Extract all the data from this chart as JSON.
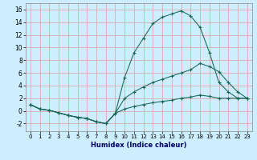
{
  "xlabel": "Humidex (Indice chaleur)",
  "bg_color": "#cceeff",
  "grid_color": "#ddaaaa",
  "line_color": "#1a6655",
  "xlim": [
    -0.5,
    23.5
  ],
  "ylim": [
    -3.2,
    17.0
  ],
  "yticks": [
    -2,
    0,
    2,
    4,
    6,
    8,
    10,
    12,
    14,
    16
  ],
  "xticks": [
    0,
    1,
    2,
    3,
    4,
    5,
    6,
    7,
    8,
    9,
    10,
    11,
    12,
    13,
    14,
    15,
    16,
    17,
    18,
    19,
    20,
    21,
    22,
    23
  ],
  "series1_x": [
    0,
    1,
    2,
    3,
    4,
    5,
    6,
    7,
    8,
    9,
    10,
    11,
    12,
    13,
    14,
    15,
    16,
    17,
    18,
    19,
    20,
    21,
    22,
    23
  ],
  "series1_y": [
    1.0,
    0.3,
    0.1,
    -0.3,
    -0.7,
    -1.0,
    -1.2,
    -1.7,
    -2.0,
    -0.4,
    5.3,
    9.2,
    11.5,
    13.8,
    14.8,
    15.3,
    15.8,
    15.0,
    13.2,
    9.2,
    4.5,
    3.0,
    2.0,
    2.0
  ],
  "series2_x": [
    0,
    1,
    2,
    3,
    4,
    5,
    6,
    7,
    8,
    9,
    10,
    11,
    12,
    13,
    14,
    15,
    16,
    17,
    18,
    19,
    20,
    21,
    22,
    23
  ],
  "series2_y": [
    1.0,
    0.3,
    0.1,
    -0.3,
    -0.7,
    -1.0,
    -1.2,
    -1.7,
    -2.0,
    -0.4,
    2.0,
    3.0,
    3.8,
    4.5,
    5.0,
    5.5,
    6.0,
    6.5,
    7.5,
    7.0,
    6.2,
    4.5,
    3.0,
    2.0
  ],
  "series3_x": [
    0,
    1,
    2,
    3,
    4,
    5,
    6,
    7,
    8,
    9,
    10,
    11,
    12,
    13,
    14,
    15,
    16,
    17,
    18,
    19,
    20,
    21,
    22,
    23
  ],
  "series3_y": [
    1.0,
    0.3,
    0.1,
    -0.3,
    -0.7,
    -1.0,
    -1.2,
    -1.7,
    -2.0,
    -0.4,
    0.3,
    0.7,
    1.0,
    1.3,
    1.5,
    1.7,
    2.0,
    2.2,
    2.5,
    2.3,
    2.0,
    2.0,
    2.0,
    2.0
  ]
}
